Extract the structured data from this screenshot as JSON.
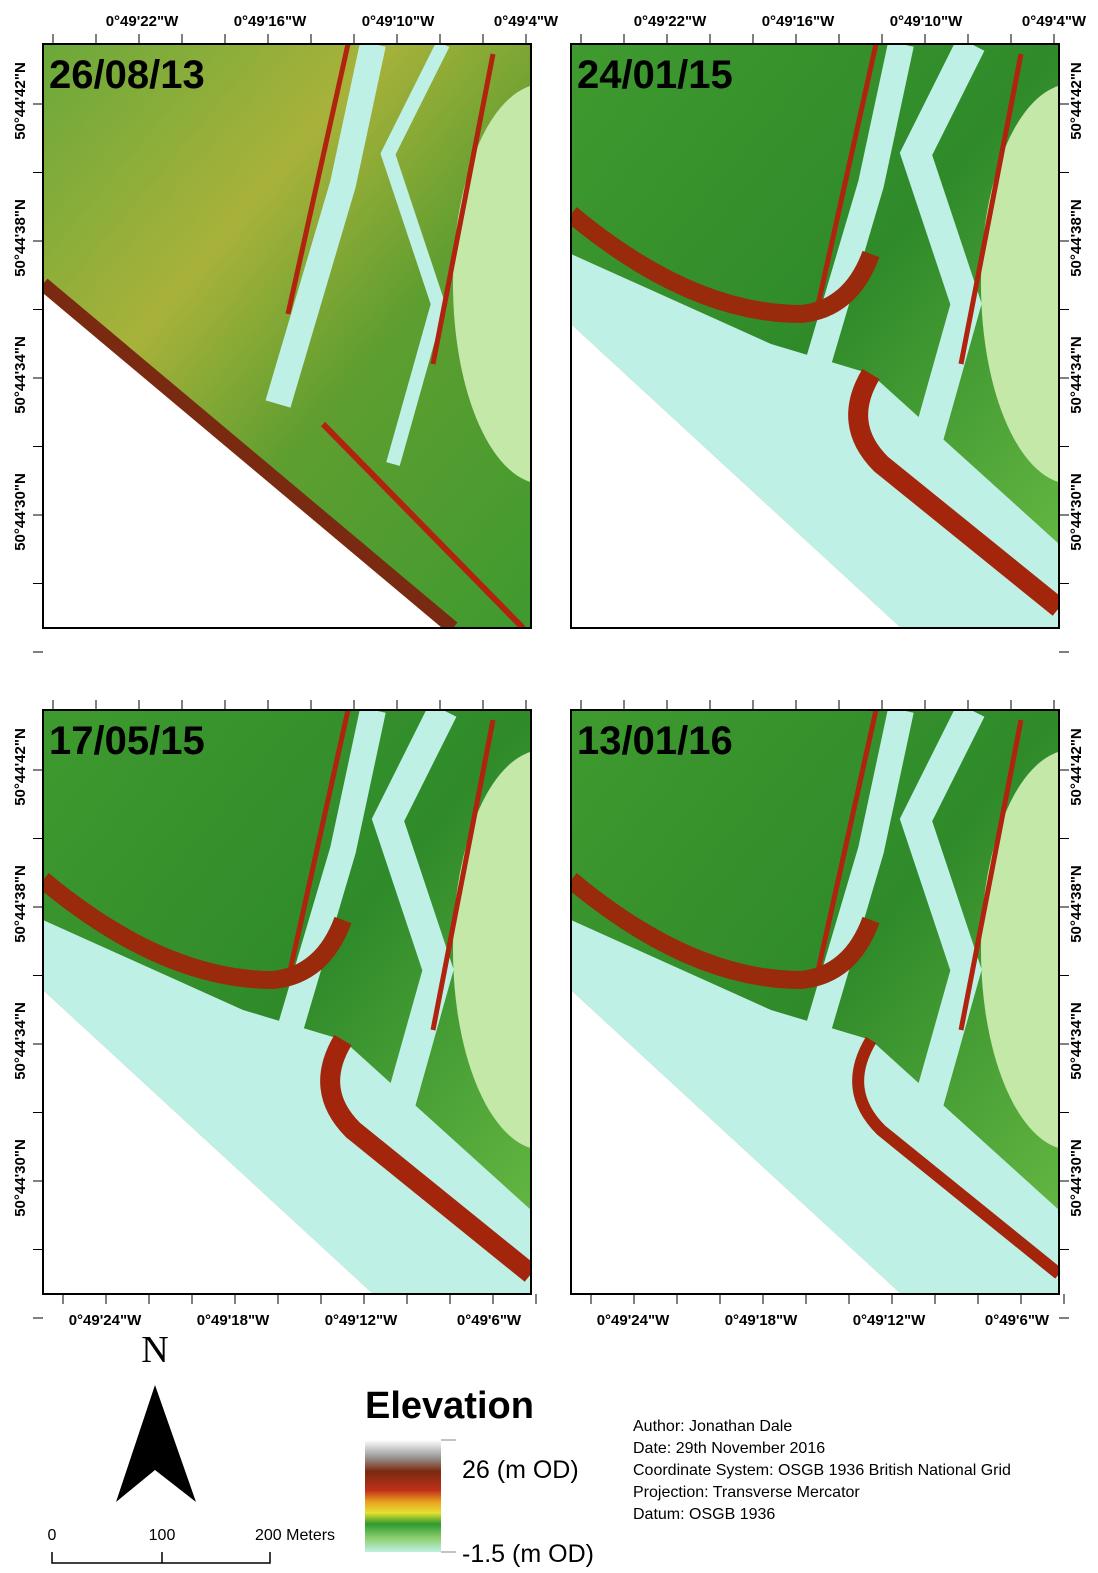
{
  "panels": [
    {
      "date": "26/08/13"
    },
    {
      "date": "24/01/15"
    },
    {
      "date": "17/05/15"
    },
    {
      "date": "13/01/16"
    }
  ],
  "axes": {
    "top_longitudes": [
      "0°49'22\"W",
      "0°49'16\"W",
      "0°49'10\"W",
      "0°49'4\"W"
    ],
    "bottom_longitudes": [
      "0°49'24\"W",
      "0°49'18\"W",
      "0°49'12\"W",
      "0°49'6\"W"
    ],
    "latitudes": [
      "50°44'42\"N",
      "50°44'38\"N",
      "50°44'34\"N",
      "50°44'30\"N"
    ]
  },
  "north_arrow": {
    "label": "N"
  },
  "scale_bar": {
    "labels": [
      "0",
      "100",
      "200 Meters"
    ]
  },
  "legend": {
    "title": "Elevation",
    "max": "26 (m OD)",
    "min": "-1.5 (m OD)"
  },
  "metadata": [
    "Author: Jonathan Dale",
    "Date: 29th November 2016",
    "Coordinate System: OSGB 1936 British National Grid",
    "Projection: Transverse Mercator",
    "Datum: OSGB 1936"
  ]
}
